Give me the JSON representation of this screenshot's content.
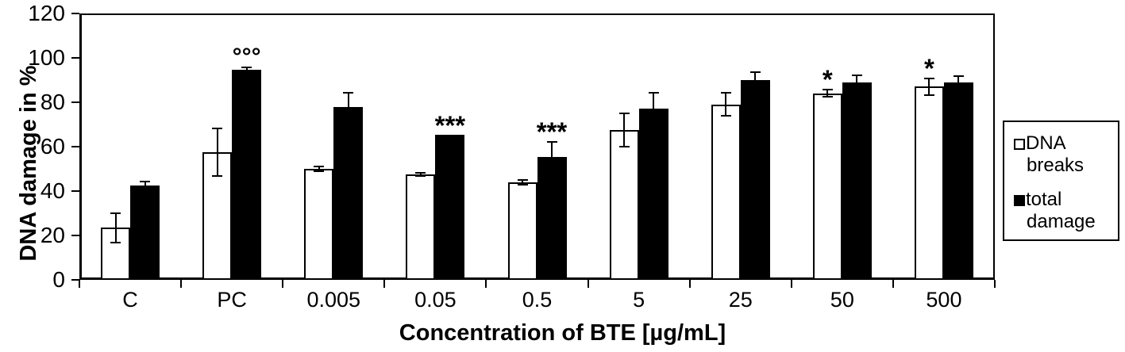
{
  "figure": {
    "background": "#ffffff",
    "axis_color": "#000000"
  },
  "chart_data": {
    "type": "bar",
    "title": "",
    "xlabel": "Concentration of BTE [µg/mL]",
    "ylabel": "DNA damage in %",
    "ylim": [
      0,
      120
    ],
    "yticks": [
      0,
      20,
      40,
      60,
      80,
      100,
      120
    ],
    "grid": false,
    "legend_position": "right",
    "categories": [
      "C",
      "PC",
      "0.005",
      "0.05",
      "0.5",
      "5",
      "25",
      "50",
      "500"
    ],
    "series": [
      {
        "name": "DNA breaks",
        "fill": "#ffffff",
        "stroke": "#000000",
        "values": [
          23.5,
          57.5,
          50,
          47.5,
          44,
          67.5,
          79,
          84,
          87
        ],
        "errors": [
          7,
          11,
          1.5,
          1,
          1.5,
          8,
          5.5,
          2,
          4
        ]
      },
      {
        "name": "total damage",
        "fill": "#000000",
        "stroke": "#000000",
        "values": [
          42.5,
          94.5,
          78,
          65.5,
          55.5,
          77,
          90,
          89,
          89
        ],
        "errors": [
          2,
          1.5,
          6.5,
          0,
          7,
          7.5,
          4,
          3.5,
          3
        ]
      }
    ],
    "annotations": [
      {
        "text": "°°°",
        "category": "PC",
        "series": 1
      },
      {
        "text": "***",
        "category": "0.05",
        "series": 1
      },
      {
        "text": "***",
        "category": "0.5",
        "series": 1
      },
      {
        "text": "*",
        "category": "50",
        "series": 0
      },
      {
        "text": "*",
        "category": "500",
        "series": 0
      }
    ]
  }
}
